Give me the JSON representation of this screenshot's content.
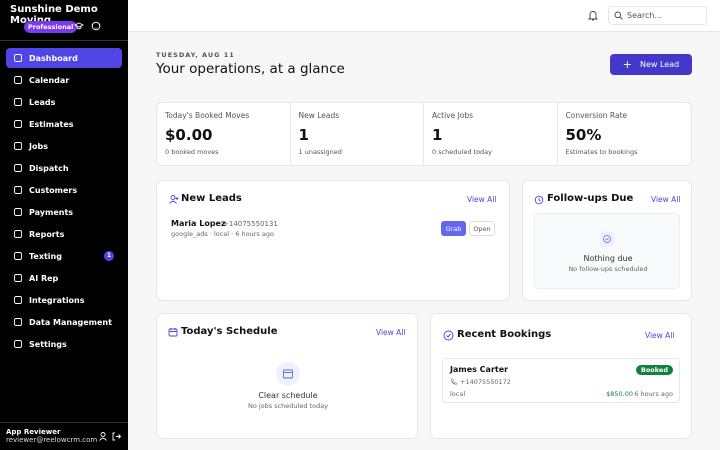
{
  "sidebar": {
    "company": "Sunshine Demo Moving",
    "plan": "Professional",
    "nav": [
      {
        "label": "Dashboard"
      },
      {
        "label": "Calendar"
      },
      {
        "label": "Leads"
      },
      {
        "label": "Estimates"
      },
      {
        "label": "Jobs"
      },
      {
        "label": "Dispatch"
      },
      {
        "label": "Customers"
      },
      {
        "label": "Payments"
      },
      {
        "label": "Reports"
      },
      {
        "label": "Texting",
        "badge": 1
      },
      {
        "label": "AI Rep"
      },
      {
        "label": "Integrations"
      },
      {
        "label": "Data Management"
      },
      {
        "label": "Settings"
      }
    ],
    "user": {
      "name": "App Reviewer",
      "email": "reviewer@reelowcrm.com"
    }
  },
  "topbar": {
    "search": "Search..."
  },
  "header": {
    "date": "TUESDAY, AUG 11",
    "title": "Your operations, at a glance",
    "button": "New Lead"
  },
  "stats": [
    {
      "label": "Today's Booked Moves",
      "value": "$0.00",
      "sub": "0 booked moves"
    },
    {
      "label": "New Leads",
      "value": "1",
      "sub": "1 unassigned"
    },
    {
      "label": "Active Jobs",
      "value": "1",
      "sub": "0 scheduled today"
    },
    {
      "label": "Conversion Rate",
      "value": "50%",
      "sub": "Estimates to bookings"
    }
  ],
  "new_leads": {
    "title": "New Leads",
    "view_all": "View All",
    "leads": [
      {
        "name": "Maria Lopez",
        "phone": "+14075550131",
        "meta": "google_ads · local · 6 hours ago",
        "actions": [
          "Grab",
          "Open"
        ]
      }
    ]
  },
  "followups": {
    "title": "Follow-ups Due",
    "view_all": "View All",
    "empty_title": "Nothing due",
    "empty_sub": "No follow-ups scheduled"
  },
  "schedule": {
    "title": "Today's Schedule",
    "view_all": "View All",
    "empty_title": "Clear schedule",
    "empty_sub": "No jobs scheduled today"
  },
  "bookings": {
    "title": "Recent Bookings",
    "view_all": "View All",
    "items": [
      {
        "name": "James Carter",
        "status": "Booked",
        "phone": "+14075550172",
        "location": "local",
        "amount": "$850.00",
        "time": "6 hours ago"
      }
    ]
  }
}
